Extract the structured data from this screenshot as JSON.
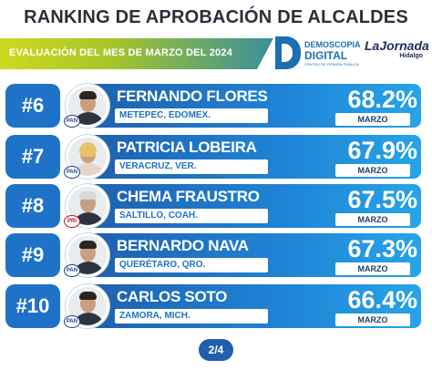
{
  "header": {
    "title": "RANKING DE APROBACIÓN DE ALCALDES",
    "subtitle": "EVALUACIÓN DEL MES DE MARZO DEL 2024"
  },
  "brands": {
    "demoscopia": {
      "line1": "DEMOSCOPIA",
      "line2": "DIGITAL",
      "tag": "CENTRO DE OPINIÓN PÚBLICA"
    },
    "lajornada": {
      "line1": "LaJornada",
      "line2": "Hidalgo"
    }
  },
  "rankings": [
    {
      "rank": "#6",
      "name": "FERNANDO FLORES",
      "place": "METEPEC, EDOMEX.",
      "pct": "68.2%",
      "month": "MARZO",
      "party": "PAN"
    },
    {
      "rank": "#7",
      "name": "PATRICIA LOBEIRA",
      "place": "VERACRUZ, VER.",
      "pct": "67.9%",
      "month": "MARZO",
      "party": "PAN"
    },
    {
      "rank": "#8",
      "name": "CHEMA FRAUSTRO",
      "place": "SALTILLO, COAH.",
      "pct": "67.5%",
      "month": "MARZO",
      "party": "PRI"
    },
    {
      "rank": "#9",
      "name": "BERNARDO NAVA",
      "place": "QUERÉTARO, QRO.",
      "pct": "67.3%",
      "month": "MARZO",
      "party": "PAN"
    },
    {
      "rank": "#10",
      "name": "CARLOS SOTO",
      "place": "ZAMORA, MICH.",
      "pct": "66.4%",
      "month": "MARZO",
      "party": "PAN"
    }
  ],
  "pager": {
    "label": "2/4"
  },
  "colors": {
    "accent": "#1e73c9",
    "green": "#a7c628"
  }
}
